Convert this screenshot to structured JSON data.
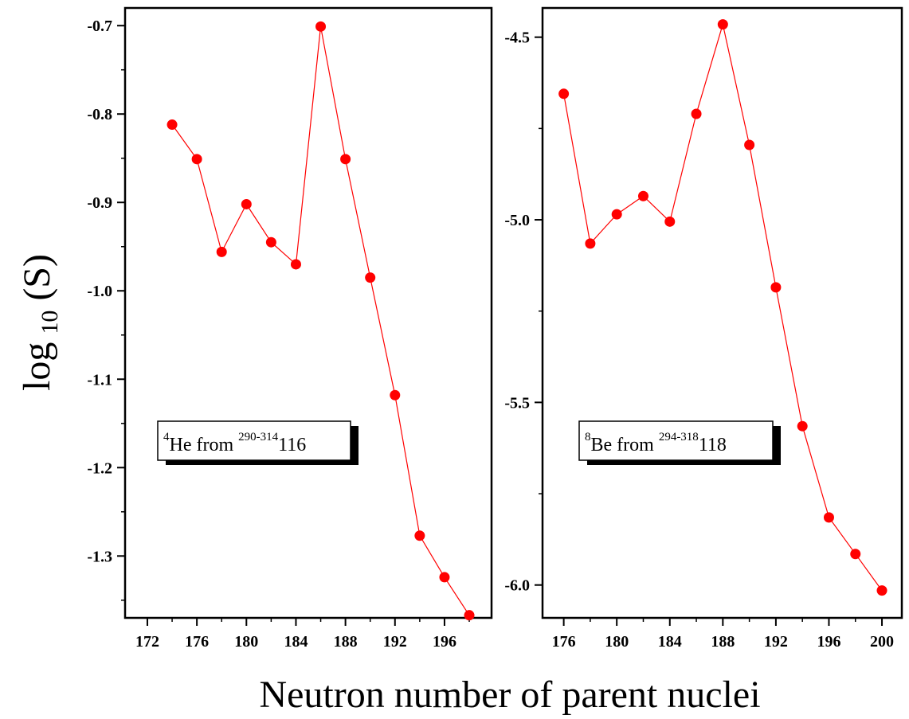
{
  "figure": {
    "ylabel_main": "log",
    "ylabel_sub": "10",
    "ylabel_tail": "(S)",
    "xlabel": "Neutron number of parent nuclei"
  },
  "chart_data": [
    {
      "type": "line",
      "marker": "circle",
      "color": "#ff0000",
      "x": [
        174,
        176,
        178,
        180,
        182,
        184,
        186,
        188,
        190,
        192,
        194,
        196,
        198
      ],
      "y": [
        -0.812,
        -0.851,
        -0.956,
        -0.902,
        -0.945,
        -0.97,
        -0.701,
        -0.851,
        -0.985,
        -1.118,
        -1.277,
        -1.324,
        -1.367
      ],
      "xlim": [
        170.2,
        199.8
      ],
      "ylim": [
        -1.37,
        -0.68
      ],
      "xticks": [
        172,
        176,
        180,
        184,
        188,
        192,
        196
      ],
      "yticks": [
        -0.7,
        -0.8,
        -0.9,
        -1.0,
        -1.1,
        -1.2,
        -1.3
      ],
      "ytick_labels": [
        "-0.7",
        "-0.8",
        "-0.9",
        "-1.0",
        "-1.1",
        "-1.2",
        "-1.3"
      ],
      "legend": {
        "sup_a": "4",
        "text_a": "He from ",
        "sup_b": "290-314",
        "text_b": "116"
      }
    },
    {
      "type": "line",
      "marker": "circle",
      "color": "#ff0000",
      "x": [
        176,
        178,
        180,
        182,
        184,
        186,
        188,
        190,
        192,
        194,
        196,
        198,
        200
      ],
      "y": [
        -4.655,
        -5.065,
        -4.985,
        -4.935,
        -5.005,
        -4.71,
        -4.465,
        -4.795,
        -5.185,
        -5.565,
        -5.815,
        -5.915,
        -6.015
      ],
      "xlim": [
        174.4,
        201.5
      ],
      "ylim": [
        -6.09,
        -4.42
      ],
      "xticks": [
        176,
        180,
        184,
        188,
        192,
        196,
        200
      ],
      "yticks": [
        -4.5,
        -5.0,
        -5.5,
        -6.0
      ],
      "ytick_labels": [
        "-4.5",
        "-5.0",
        "-5.5",
        "-6.0"
      ],
      "legend": {
        "sup_a": "8",
        "text_a": "Be from ",
        "sup_b": "294-318",
        "text_b": "118"
      }
    }
  ]
}
